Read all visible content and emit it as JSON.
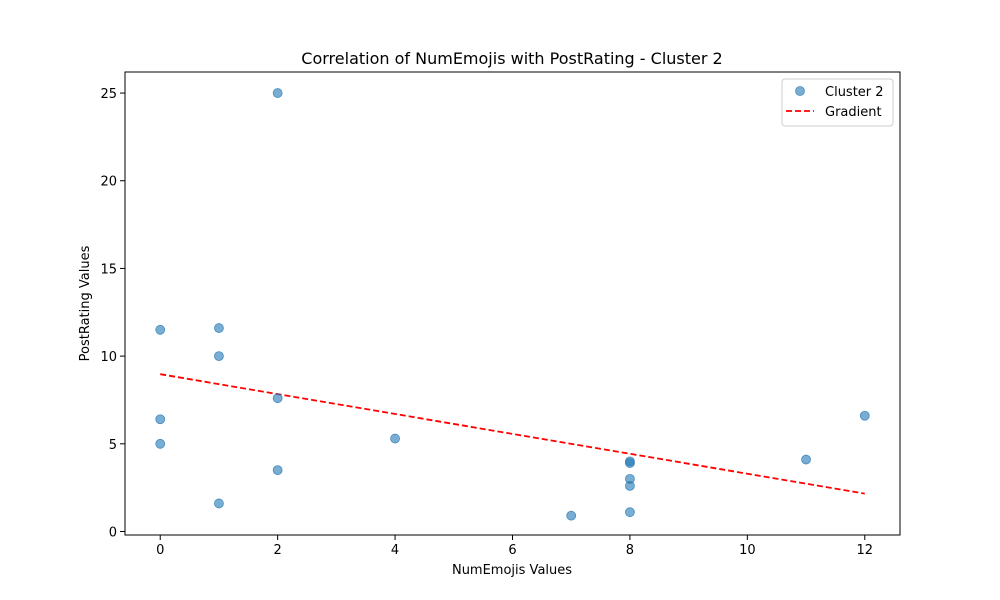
{
  "chart_data": {
    "type": "scatter",
    "title": "Correlation of NumEmojis with PostRating - Cluster 2",
    "xlabel": "NumEmojis Values",
    "ylabel": "PostRating Values",
    "xlim": [
      -0.6,
      12.6
    ],
    "ylim": [
      -0.2,
      26.2
    ],
    "x_ticks": [
      0,
      2,
      4,
      6,
      8,
      10,
      12
    ],
    "y_ticks": [
      0,
      5,
      10,
      15,
      20,
      25
    ],
    "grid": false,
    "legend_position": "top-right",
    "series": [
      {
        "name": "Cluster 2",
        "kind": "scatter",
        "color": "#1f77b4",
        "points": [
          {
            "x": 0,
            "y": 11.5
          },
          {
            "x": 0,
            "y": 6.4
          },
          {
            "x": 0,
            "y": 5.0
          },
          {
            "x": 1,
            "y": 11.6
          },
          {
            "x": 1,
            "y": 10.0
          },
          {
            "x": 1,
            "y": 1.6
          },
          {
            "x": 2,
            "y": 25.0
          },
          {
            "x": 2,
            "y": 7.6
          },
          {
            "x": 2,
            "y": 3.5
          },
          {
            "x": 4,
            "y": 5.3
          },
          {
            "x": 7,
            "y": 0.9
          },
          {
            "x": 8,
            "y": 4.0
          },
          {
            "x": 8,
            "y": 3.9
          },
          {
            "x": 8,
            "y": 3.0
          },
          {
            "x": 8,
            "y": 2.6
          },
          {
            "x": 8,
            "y": 1.1
          },
          {
            "x": 11,
            "y": 4.1
          },
          {
            "x": 12,
            "y": 6.6
          }
        ]
      },
      {
        "name": "Gradient",
        "kind": "line",
        "style": "dashed",
        "color": "#ff0000",
        "points": [
          {
            "x": 0,
            "y": 8.97
          },
          {
            "x": 12,
            "y": 2.16
          }
        ]
      }
    ]
  }
}
